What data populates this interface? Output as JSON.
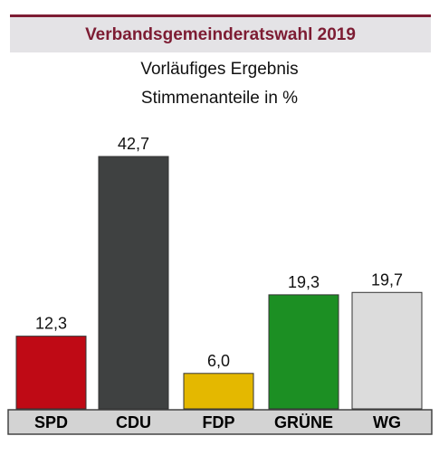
{
  "header": {
    "title": "Verbandsgemeinderatswahl 2019"
  },
  "subtitle1": "Vorläufiges Ergebnis",
  "subtitle2": "Stimmenanteile in %",
  "chart_data": {
    "type": "bar",
    "categories": [
      "SPD",
      "CDU",
      "FDP",
      "GRÜNE",
      "WG"
    ],
    "values": [
      12.3,
      42.7,
      6.0,
      19.3,
      19.7
    ],
    "value_labels": [
      "12,3",
      "42,7",
      "6,0",
      "19,3",
      "19,7"
    ],
    "colors": [
      "#bf0a15",
      "#3f4141",
      "#e4b800",
      "#1c8f23",
      "#dcdcdc"
    ],
    "ylim": [
      0,
      42.7
    ],
    "xlabel": "",
    "ylabel": "",
    "grid": false,
    "legend": "none"
  }
}
